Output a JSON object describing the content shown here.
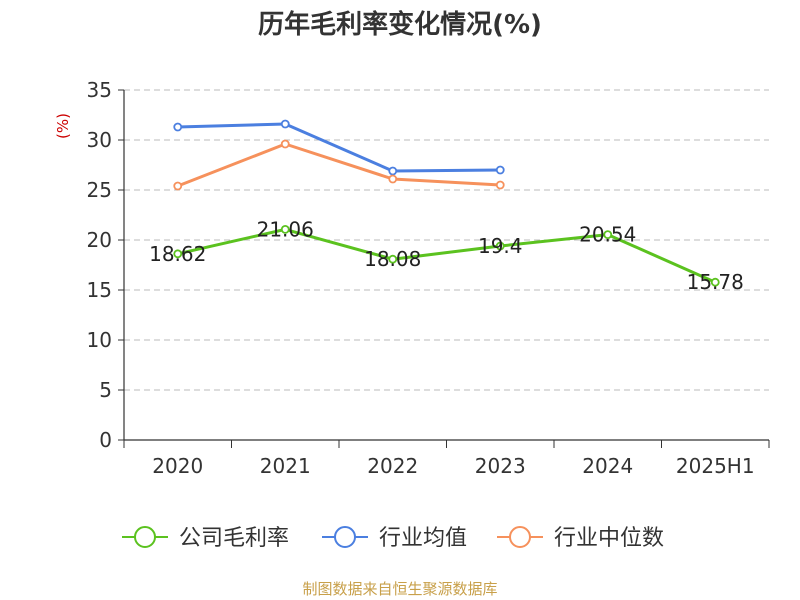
{
  "chart_data": {
    "type": "line",
    "title": "历年毛利率变化情况(%)",
    "ylabel": "(%)",
    "categories": [
      "2020",
      "2021",
      "2022",
      "2023",
      "2024",
      "2025H1"
    ],
    "ylim": [
      0,
      35
    ],
    "yticks": [
      0,
      5,
      10,
      15,
      20,
      25,
      30,
      35
    ],
    "grid": true,
    "legend_position": "bottom",
    "series": [
      {
        "name": "公司毛利率",
        "color": "#5bc21f",
        "values": [
          18.62,
          21.06,
          18.08,
          19.4,
          20.54,
          15.78
        ],
        "labels": [
          "18.62",
          "21.06",
          "18.08",
          "19.4",
          "20.54",
          "15.78"
        ]
      },
      {
        "name": "行业均值",
        "color": "#4b7fe0",
        "values": [
          31.3,
          31.6,
          26.9,
          27.0,
          null,
          null
        ]
      },
      {
        "name": "行业中位数",
        "color": "#f6915c",
        "values": [
          25.4,
          29.6,
          26.1,
          25.5,
          null,
          null
        ]
      }
    ]
  },
  "source": "制图数据来自恒生聚源数据库"
}
